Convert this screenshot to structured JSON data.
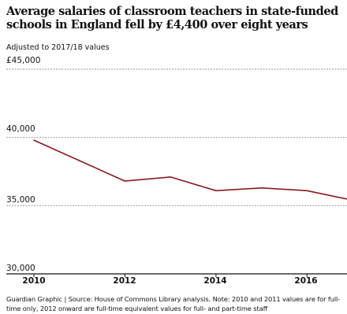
{
  "chart_data": {
    "type": "line",
    "title": "Average salaries of classroom teachers in state-funded schools in England fell by £4,400 over eight years",
    "subtitle": "Adjusted to 2017/18 values",
    "xlabel": "",
    "ylabel": "",
    "x": [
      2010,
      2011,
      2012,
      2013,
      2014,
      2015,
      2016,
      2017
    ],
    "xlim": [
      2010,
      2017
    ],
    "ylim": [
      30000,
      45000
    ],
    "x_ticks": [
      "2010",
      "2012",
      "2014",
      "2016"
    ],
    "y_ticks": [
      "£45,000",
      "40,000",
      "35,000",
      "30,000"
    ],
    "grid": "horizontal dashed",
    "series": [
      {
        "color": "#8b1a1a",
        "values": [
          39800,
          38300,
          36800,
          37100,
          36100,
          36300,
          36100,
          35400
        ]
      }
    ],
    "source": "Guardian Graphic | Source: House of Commons Library analysis. Note: 2010 and 2011 values are for full-time only, 2012 onward are full-time equivalent values for full- and part-time staff"
  }
}
